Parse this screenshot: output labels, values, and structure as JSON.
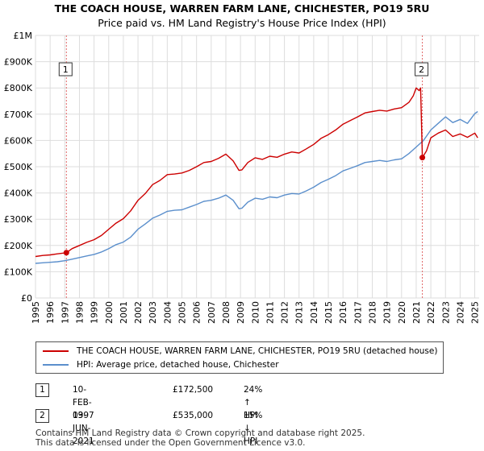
{
  "title_line1": "THE COACH HOUSE, WARREN FARM LANE, CHICHESTER, PO19 5RU",
  "title_line2": "Price paid vs. HM Land Registry's House Price Index (HPI)",
  "chart_data": {
    "type": "line",
    "title": "THE COACH HOUSE, WARREN FARM LANE, CHICHESTER, PO19 5RU",
    "subtitle": "Price paid vs. HM Land Registry's House Price Index (HPI)",
    "xlabel": "",
    "ylabel": "",
    "xlim": [
      1995,
      2025.3
    ],
    "ylim": [
      0,
      1000000
    ],
    "y_ticks": [
      0,
      100000,
      200000,
      300000,
      400000,
      500000,
      600000,
      700000,
      800000,
      900000,
      1000000
    ],
    "y_tick_labels": [
      "£0",
      "£100K",
      "£200K",
      "£300K",
      "£400K",
      "£500K",
      "£600K",
      "£700K",
      "£800K",
      "£900K",
      "£1M"
    ],
    "x_ticks": [
      1995,
      1996,
      1997,
      1998,
      1999,
      2000,
      2001,
      2002,
      2003,
      2004,
      2005,
      2006,
      2007,
      2008,
      2009,
      2010,
      2011,
      2012,
      2013,
      2014,
      2015,
      2016,
      2017,
      2018,
      2019,
      2020,
      2021,
      2022,
      2023,
      2024,
      2025
    ],
    "x_tick_labels": [
      "1995",
      "1996",
      "1997",
      "1998",
      "1999",
      "2000",
      "2001",
      "2002",
      "2003",
      "2004",
      "2005",
      "2006",
      "2007",
      "2008",
      "2009",
      "2010",
      "2011",
      "2012",
      "2013",
      "2014",
      "2015",
      "2016",
      "2017",
      "2018",
      "2019",
      "2020",
      "2021",
      "2022",
      "2023",
      "2024",
      "2025"
    ],
    "grid": true,
    "series": [
      {
        "name": "THE COACH HOUSE, WARREN FARM LANE, CHICHESTER, PO19 5RU (detached house)",
        "color": "#cc0000",
        "x": [
          1995.0,
          1995.5,
          1996.0,
          1996.5,
          1997.11,
          1997.5,
          1998.0,
          1998.5,
          1999.0,
          1999.5,
          2000.0,
          2000.5,
          2001.0,
          2001.5,
          2002.0,
          2002.5,
          2003.0,
          2003.5,
          2004.0,
          2004.5,
          2005.0,
          2005.5,
          2006.0,
          2006.5,
          2007.0,
          2007.5,
          2008.0,
          2008.5,
          2008.9,
          2009.1,
          2009.5,
          2010.0,
          2010.5,
          2011.0,
          2011.5,
          2012.0,
          2012.5,
          2013.0,
          2013.5,
          2014.0,
          2014.5,
          2015.0,
          2015.5,
          2016.0,
          2016.5,
          2017.0,
          2017.5,
          2018.0,
          2018.5,
          2019.0,
          2019.5,
          2020.0,
          2020.5,
          2020.8,
          2021.0,
          2021.2,
          2021.3,
          2021.42,
          2021.7,
          2022.0,
          2022.5,
          2023.0,
          2023.5,
          2024.0,
          2024.5,
          2025.0,
          2025.2
        ],
        "values": [
          158000,
          162000,
          164000,
          168000,
          172500,
          188000,
          200000,
          212000,
          222000,
          238000,
          262000,
          285000,
          302000,
          332000,
          372000,
          398000,
          432000,
          448000,
          470000,
          472000,
          476000,
          486000,
          500000,
          516000,
          520000,
          532000,
          548000,
          522000,
          486000,
          488000,
          516000,
          534000,
          528000,
          540000,
          536000,
          548000,
          556000,
          552000,
          568000,
          585000,
          608000,
          622000,
          640000,
          662000,
          676000,
          690000,
          705000,
          710000,
          715000,
          712000,
          720000,
          725000,
          745000,
          770000,
          800000,
          790000,
          800000,
          535000,
          560000,
          610000,
          628000,
          640000,
          615000,
          625000,
          612000,
          628000,
          610000
        ]
      },
      {
        "name": "HPI: Average price, detached house, Chichester",
        "color": "#5b8fcc",
        "x": [
          1995.0,
          1995.5,
          1996.0,
          1996.5,
          1997.0,
          1997.5,
          1998.0,
          1998.5,
          1999.0,
          1999.5,
          2000.0,
          2000.5,
          2001.0,
          2001.5,
          2002.0,
          2002.5,
          2003.0,
          2003.5,
          2004.0,
          2004.5,
          2005.0,
          2005.5,
          2006.0,
          2006.5,
          2007.0,
          2007.5,
          2008.0,
          2008.5,
          2008.9,
          2009.1,
          2009.5,
          2010.0,
          2010.5,
          2011.0,
          2011.5,
          2012.0,
          2012.5,
          2013.0,
          2013.5,
          2014.0,
          2014.5,
          2015.0,
          2015.5,
          2016.0,
          2016.5,
          2017.0,
          2017.5,
          2018.0,
          2018.5,
          2019.0,
          2019.5,
          2020.0,
          2020.5,
          2021.0,
          2021.5,
          2022.0,
          2022.5,
          2023.0,
          2023.5,
          2024.0,
          2024.5,
          2025.0,
          2025.2
        ],
        "values": [
          132000,
          134000,
          136000,
          138000,
          142000,
          148000,
          154000,
          160000,
          166000,
          175000,
          188000,
          203000,
          213000,
          232000,
          262000,
          282000,
          304000,
          316000,
          330000,
          334000,
          336000,
          346000,
          356000,
          368000,
          372000,
          380000,
          392000,
          372000,
          340000,
          342000,
          365000,
          380000,
          376000,
          385000,
          382000,
          392000,
          398000,
          396000,
          408000,
          422000,
          440000,
          452000,
          466000,
          484000,
          494000,
          504000,
          516000,
          520000,
          524000,
          520000,
          526000,
          530000,
          550000,
          575000,
          600000,
          640000,
          665000,
          690000,
          668000,
          680000,
          665000,
          702000,
          710000
        ]
      }
    ],
    "markers": [
      {
        "label": "1",
        "x": 1997.11,
        "y": 172500
      },
      {
        "label": "2",
        "x": 2021.42,
        "y": 535000
      }
    ]
  },
  "legend": {
    "items": [
      {
        "label": "THE COACH HOUSE, WARREN FARM LANE, CHICHESTER, PO19 5RU (detached house)",
        "color": "#cc0000"
      },
      {
        "label": "HPI: Average price, detached house, Chichester",
        "color": "#5b8fcc"
      }
    ]
  },
  "transactions": [
    {
      "num": "1",
      "date": "10-FEB-1997",
      "price": "£172,500",
      "hpi": "24% ↑ HPI"
    },
    {
      "num": "2",
      "date": "03-JUN-2021",
      "price": "£535,000",
      "hpi": "15% ↓ HPI"
    }
  ],
  "footer_line1": "Contains HM Land Registry data © Crown copyright and database right 2025.",
  "footer_line2": "This data is licensed under the Open Government Licence v3.0."
}
